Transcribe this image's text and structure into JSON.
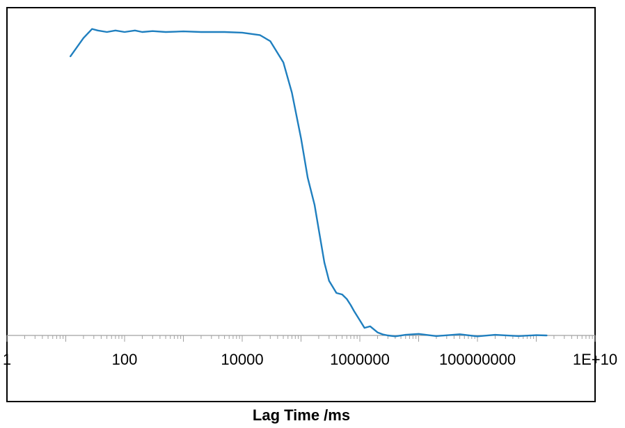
{
  "chart_data": {
    "type": "line",
    "title": "",
    "xlabel": "Lag Time /ms",
    "ylabel": "",
    "x_scale": "log10",
    "xlim": [
      1,
      10000000000
    ],
    "ylim": [
      -0.02,
      1.12
    ],
    "x_tick_labels": [
      "1",
      "100",
      "10000",
      "1000000",
      "100000000",
      "1E+10"
    ],
    "grid": false,
    "legend": "none",
    "series": [
      {
        "color": "#1f7fbf",
        "x": [
          12,
          20,
          28,
          35,
          50,
          70,
          100,
          150,
          200,
          300,
          500,
          1000,
          2000,
          5000,
          10000,
          20000,
          30000,
          50000,
          70000,
          100000,
          130000,
          170000,
          200000,
          250000,
          300000,
          400000,
          500000,
          600000,
          700000,
          800000,
          1000000,
          1200000,
          1500000,
          2000000,
          2500000,
          3000000,
          4000000,
          6000000,
          10000000,
          20000000,
          50000000,
          100000000,
          200000000,
          500000000,
          1000000000,
          1500000000
        ],
        "y": [
          0.92,
          0.98,
          1.01,
          1.005,
          1.0,
          1.005,
          1.0,
          1.005,
          1.0,
          1.003,
          1.0,
          1.002,
          1.0,
          1.0,
          0.998,
          0.99,
          0.97,
          0.9,
          0.8,
          0.65,
          0.52,
          0.43,
          0.35,
          0.24,
          0.18,
          0.14,
          0.135,
          0.12,
          0.1,
          0.08,
          0.05,
          0.025,
          0.03,
          0.01,
          0.003,
          0.0,
          -0.003,
          0.002,
          0.005,
          -0.002,
          0.004,
          -0.003,
          0.002,
          -0.002,
          0.001,
          0.0
        ]
      }
    ]
  }
}
